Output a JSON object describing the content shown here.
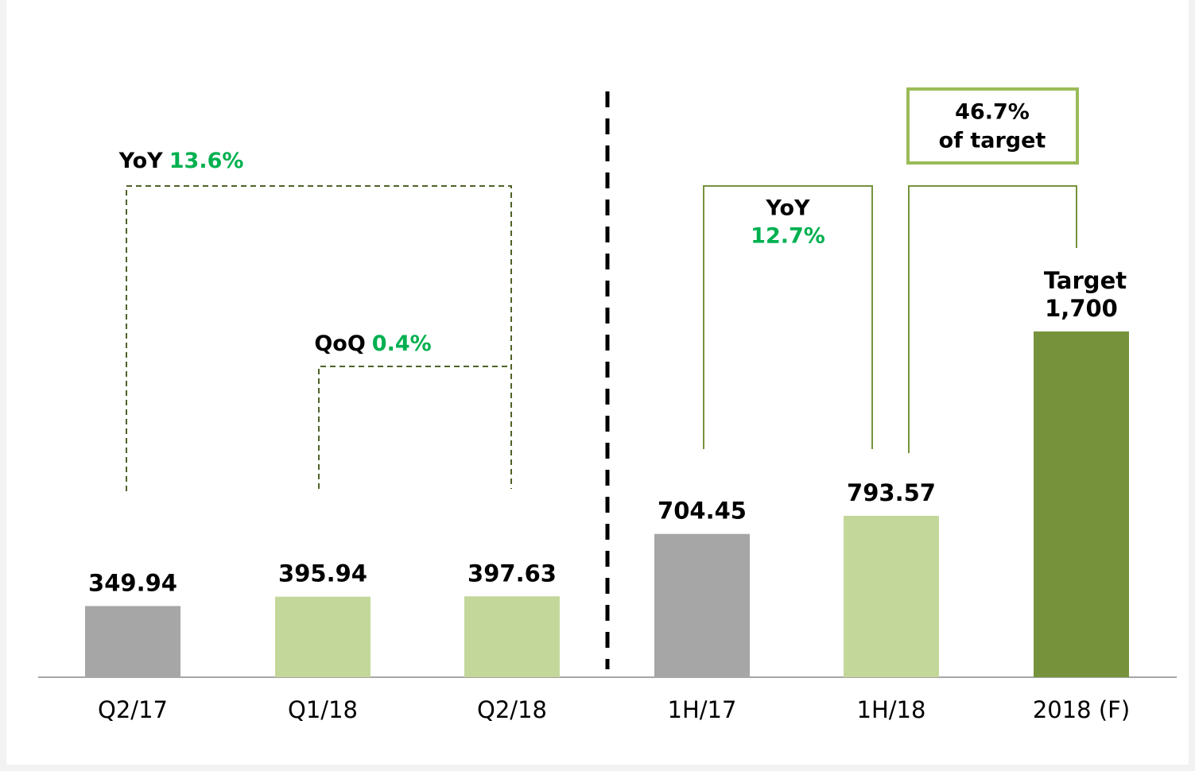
{
  "chart_data": {
    "type": "bar",
    "categories": [
      "Q2/17",
      "Q1/18",
      "Q2/18",
      "1H/17",
      "1H/18",
      "2018 (F)"
    ],
    "values": [
      349.94,
      395.94,
      397.63,
      704.45,
      793.57,
      1700
    ],
    "value_labels": [
      "349.94",
      "395.94",
      "397.63",
      "704.45",
      "793.57",
      "1,700"
    ],
    "colors": [
      "#a6a6a6",
      "#c4d79b",
      "#c4d79b",
      "#a6a6a6",
      "#c4d79b",
      "#76933c"
    ],
    "ylim": [
      0,
      1700
    ],
    "annotations": [
      {
        "label": "YoY",
        "change": "13.6%"
      },
      {
        "label": "QoQ",
        "change": "0.4%"
      },
      {
        "label": "YoY",
        "change": "12.7%"
      }
    ],
    "target_box": [
      "46.7%",
      "of target"
    ],
    "target_label": "Target"
  }
}
